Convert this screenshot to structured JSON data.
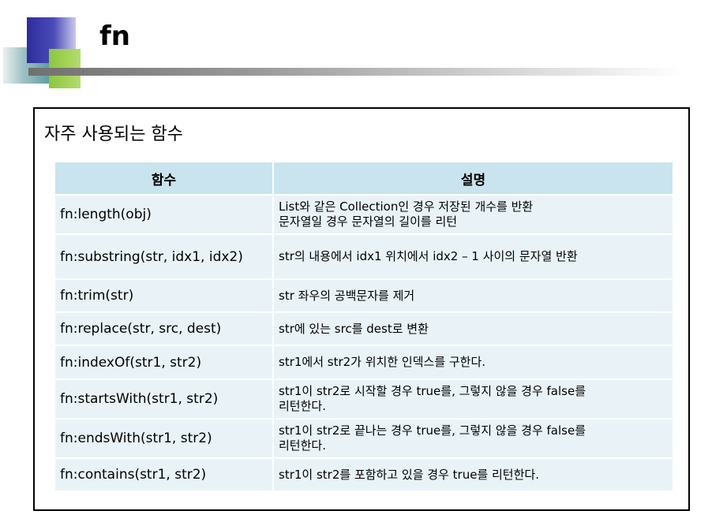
{
  "slide": {
    "title": "fn"
  },
  "section": {
    "heading": "자주 사용되는 함수"
  },
  "table": {
    "headers": [
      "함수",
      "설명"
    ],
    "rows": [
      {
        "fn": "fn:length(obj)",
        "desc": [
          "List와 같은 Collection인 경우 저장된 개수를 반환",
          "문자열일 경우 문자열의 길이를 리턴"
        ]
      },
      {
        "fn": "fn:substring(str, idx1, idx2)",
        "desc": [
          "str의 내용에서 idx1 위치에서 idx2 – 1 사이의 문자열 반환"
        ]
      },
      {
        "fn": "fn:trim(str)",
        "desc": [
          "str 좌우의 공백문자를 제거"
        ]
      },
      {
        "fn": "fn:replace(str, src, dest)",
        "desc": [
          "str에 있는 src를 dest로 변환"
        ]
      },
      {
        "fn": "fn:indexOf(str1, str2)",
        "desc": [
          "str1에서 str2가 위치한 인덱스를 구한다."
        ]
      },
      {
        "fn": "fn:startsWith(str1, str2)",
        "desc": [
          "str1이 str2로 시작할 경우 true를, 그렇지 않을 경우 false를",
          "리턴한다."
        ]
      },
      {
        "fn": "fn:endsWith(str1, str2)",
        "desc": [
          "str1이 str2로 끝나는 경우 true를, 그렇지 않을 경우 false를",
          "리턴한다."
        ]
      },
      {
        "fn": "fn:contains(str1, str2)",
        "desc": [
          "str1이 str2를 포함하고 있을 경우 true를 리턴한다."
        ]
      }
    ]
  },
  "colors": {
    "header_bg": "#c9e4ee",
    "row_bg": "#e9f3f7",
    "accent_blue": "#2c2c9c",
    "accent_green": "#8cc63f",
    "accent_teal": "#5f9da4"
  }
}
